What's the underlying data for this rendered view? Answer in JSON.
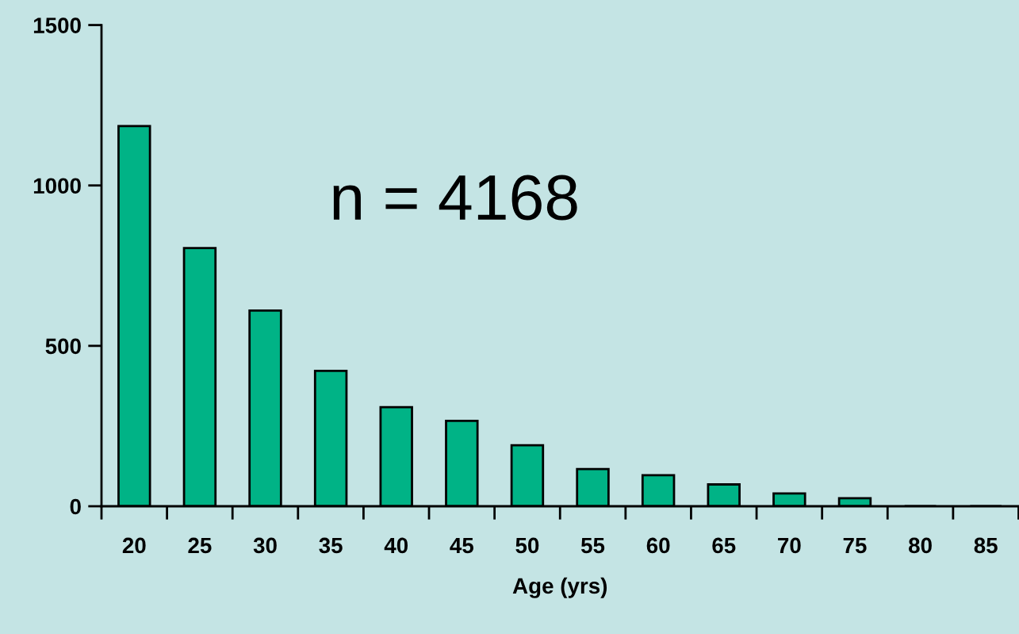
{
  "chart_data": {
    "type": "bar",
    "xlabel": "Age (yrs)",
    "categories": [
      "20",
      "25",
      "30",
      "35",
      "40",
      "45",
      "50",
      "55",
      "60",
      "65",
      "70",
      "75",
      "80",
      "85"
    ],
    "values": [
      1185,
      805,
      610,
      422,
      309,
      266,
      190,
      116,
      97,
      68,
      40,
      25,
      0,
      0
    ],
    "color": "#00b386",
    "ylim": [
      0,
      1500
    ],
    "yticks": [
      0,
      500,
      1000,
      1500
    ],
    "grid": false,
    "annotations": [
      "n = 4168"
    ]
  }
}
